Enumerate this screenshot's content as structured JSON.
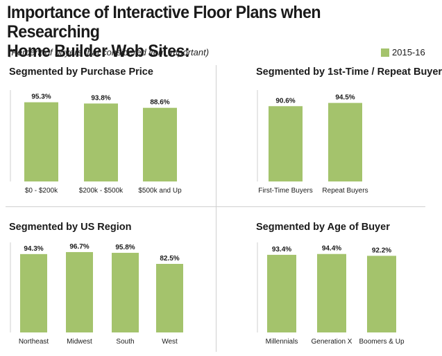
{
  "title_line1": "Importance of Interactive Floor Plans when Researching",
  "title_line2": "Home Builder Web Sites:",
  "subtitle": "(Percent of buyers that considered item important)",
  "legend_label": "2015-16",
  "bar_color": "#a4c36c",
  "chart_data": [
    {
      "type": "bar",
      "title": "Segmented by Purchase Price",
      "categories": [
        "$0 - $200k",
        "$200k - $500k",
        "$500k and Up"
      ],
      "values": [
        95.3,
        93.8,
        88.6
      ],
      "value_labels": [
        "95.3%",
        "93.8%",
        "88.6%"
      ],
      "ylim": [
        0,
        100
      ],
      "grid": false
    },
    {
      "type": "bar",
      "title": "Segmented by 1st-Time / Repeat Buyer",
      "categories": [
        "First-Time Buyers",
        "Repeat Buyers"
      ],
      "values": [
        90.6,
        94.5
      ],
      "value_labels": [
        "90.6%",
        "94.5%"
      ],
      "ylim": [
        0,
        100
      ],
      "grid": false
    },
    {
      "type": "bar",
      "title": "Segmented by US Region",
      "categories": [
        "Northeast",
        "Midwest",
        "South",
        "West"
      ],
      "values": [
        94.3,
        96.7,
        95.8,
        82.5
      ],
      "value_labels": [
        "94.3%",
        "96.7%",
        "95.8%",
        "82.5%"
      ],
      "ylim": [
        0,
        100
      ],
      "grid": false
    },
    {
      "type": "bar",
      "title": "Segmented by Age of Buyer",
      "categories": [
        "Millennials",
        "Generation X",
        "Boomers & Up"
      ],
      "values": [
        93.4,
        94.4,
        92.2
      ],
      "value_labels": [
        "93.4%",
        "94.4%",
        "92.2%"
      ],
      "ylim": [
        0,
        100
      ],
      "grid": false
    }
  ]
}
